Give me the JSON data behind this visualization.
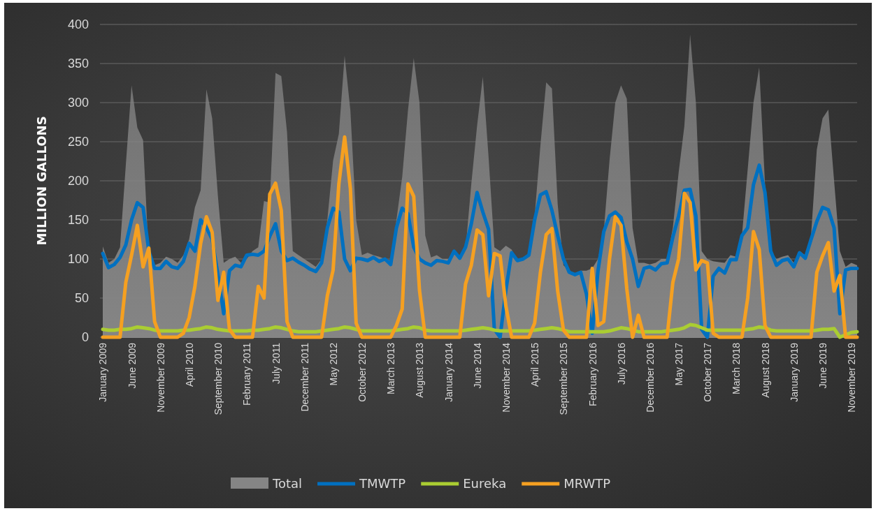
{
  "chart_data": {
    "type": "line",
    "ylabel": "MILLION GALLONS",
    "ylim": [
      0,
      400
    ],
    "yticks": [
      0,
      50,
      100,
      150,
      200,
      250,
      300,
      350,
      400
    ],
    "grid": "y",
    "legend": "bottom",
    "categories": [
      "January 2009",
      null,
      null,
      null,
      null,
      "June 2009",
      null,
      null,
      null,
      null,
      "November 2009",
      null,
      null,
      null,
      null,
      "April 2010",
      null,
      null,
      null,
      null,
      "September 2010",
      null,
      null,
      null,
      null,
      "February 2011",
      null,
      null,
      null,
      null,
      "July 2011",
      null,
      null,
      null,
      null,
      "December 2011",
      null,
      null,
      null,
      null,
      "May 2012",
      null,
      null,
      null,
      null,
      "October 2012",
      null,
      null,
      null,
      null,
      "March 2013",
      null,
      null,
      null,
      null,
      "August 2013",
      null,
      null,
      null,
      null,
      "January 2014",
      null,
      null,
      null,
      null,
      "June 2014",
      null,
      null,
      null,
      null,
      "November 2014",
      null,
      null,
      null,
      null,
      "April 2015",
      null,
      null,
      null,
      null,
      "September 2015",
      null,
      null,
      null,
      null,
      "February 2016",
      null,
      null,
      null,
      null,
      "July 2016",
      null,
      null,
      null,
      null,
      "December 2016",
      null,
      null,
      null,
      null,
      "May 2017",
      null,
      null,
      null,
      null,
      "October 2017",
      null,
      null,
      null,
      null,
      "March 2018",
      null,
      null,
      null,
      null,
      "August 2018",
      null,
      null,
      null,
      null,
      "January 2019",
      null,
      null,
      null,
      null,
      "June 2019",
      null,
      null,
      null,
      null,
      "November 2019",
      null
    ],
    "series": [
      {
        "name": "Total",
        "type": "area",
        "color": "#858585",
        "values": [
          116,
          95,
          100,
          115,
          220,
          322,
          268,
          252,
          100,
          92,
          95,
          103,
          100,
          95,
          105,
          125,
          166,
          188,
          317,
          280,
          180,
          95,
          100,
          103,
          95,
          100,
          110,
          115,
          174,
          172,
          338,
          334,
          262,
          110,
          105,
          100,
          95,
          90,
          100,
          150,
          226,
          260,
          360,
          290,
          150,
          105,
          108,
          105,
          103,
          100,
          98,
          150,
          205,
          290,
          357,
          300,
          130,
          102,
          105,
          100,
          100,
          110,
          103,
          112,
          196,
          270,
          333,
          230,
          115,
          110,
          117,
          112,
          97,
          100,
          107,
          155,
          245,
          326,
          318,
          170,
          92,
          85,
          82,
          85,
          85,
          88,
          100,
          135,
          226,
          300,
          322,
          305,
          140,
          95,
          95,
          93,
          95,
          100,
          100,
          140,
          210,
          270,
          387,
          300,
          110,
          100,
          97,
          96,
          95,
          105,
          103,
          130,
          215,
          300,
          345,
          196,
          110,
          100,
          103,
          105,
          95,
          110,
          105,
          130,
          240,
          280,
          291,
          200,
          110,
          90,
          95,
          92
        ]
      },
      {
        "name": "TMWTP",
        "color": "#0070c0",
        "values": [
          107,
          89,
          93,
          102,
          118,
          150,
          172,
          166,
          110,
          88,
          88,
          97,
          90,
          88,
          97,
          120,
          110,
          150,
          140,
          125,
          80,
          30,
          85,
          92,
          90,
          105,
          106,
          105,
          110,
          129,
          145,
          110,
          98,
          101,
          96,
          92,
          87,
          84,
          95,
          140,
          165,
          160,
          100,
          85,
          101,
          100,
          98,
          102,
          97,
          100,
          93,
          140,
          165,
          158,
          115,
          100,
          95,
          92,
          98,
          97,
          95,
          110,
          101,
          115,
          145,
          185,
          160,
          138,
          10,
          0,
          60,
          108,
          98,
          100,
          105,
          150,
          182,
          186,
          162,
          130,
          100,
          83,
          80,
          83,
          55,
          5,
          85,
          135,
          155,
          160,
          153,
          122,
          100,
          65,
          88,
          90,
          86,
          94,
          95,
          128,
          155,
          188,
          189,
          155,
          10,
          0,
          78,
          88,
          82,
          99,
          99,
          130,
          140,
          195,
          220,
          185,
          110,
          92,
          98,
          100,
          90,
          108,
          101,
          125,
          148,
          166,
          163,
          140,
          30,
          86,
          88,
          88
        ]
      },
      {
        "name": "Eureka",
        "color": "#aacd32",
        "values": [
          10,
          9,
          9,
          10,
          10,
          11,
          13,
          12,
          11,
          9,
          8,
          8,
          8,
          8,
          9,
          9,
          10,
          11,
          13,
          12,
          10,
          9,
          8,
          8,
          8,
          8,
          9,
          9,
          10,
          11,
          13,
          12,
          10,
          8,
          7,
          7,
          7,
          7,
          8,
          9,
          10,
          11,
          13,
          12,
          10,
          8,
          8,
          8,
          8,
          8,
          8,
          9,
          10,
          11,
          13,
          12,
          9,
          8,
          8,
          8,
          8,
          8,
          8,
          9,
          10,
          11,
          12,
          11,
          9,
          8,
          8,
          8,
          8,
          8,
          8,
          9,
          10,
          11,
          12,
          11,
          9,
          7,
          7,
          7,
          7,
          7,
          7,
          7,
          8,
          10,
          12,
          11,
          9,
          7,
          7,
          7,
          7,
          7,
          8,
          9,
          10,
          12,
          16,
          15,
          12,
          9,
          9,
          9,
          9,
          9,
          9,
          9,
          10,
          11,
          13,
          12,
          9,
          8,
          8,
          8,
          8,
          8,
          8,
          8,
          9,
          10,
          10,
          11,
          0,
          3,
          6,
          7
        ]
      },
      {
        "name": "MRWTP",
        "color": "#f5a021",
        "values": [
          0,
          0,
          0,
          0,
          70,
          105,
          143,
          90,
          114,
          20,
          0,
          0,
          0,
          0,
          5,
          25,
          65,
          120,
          154,
          134,
          47,
          83,
          10,
          0,
          0,
          0,
          0,
          65,
          50,
          183,
          197,
          162,
          20,
          0,
          0,
          0,
          0,
          0,
          0,
          53,
          86,
          196,
          256,
          190,
          18,
          0,
          0,
          0,
          0,
          0,
          0,
          15,
          36,
          196,
          180,
          60,
          0,
          0,
          0,
          0,
          0,
          0,
          0,
          68,
          92,
          137,
          131,
          53,
          107,
          104,
          40,
          0,
          0,
          0,
          0,
          18,
          83,
          131,
          139,
          59,
          9,
          0,
          0,
          0,
          0,
          88,
          15,
          20,
          100,
          154,
          143,
          62,
          0,
          28,
          0,
          0,
          0,
          0,
          0,
          70,
          100,
          184,
          172,
          86,
          98,
          95,
          5,
          0,
          0,
          0,
          0,
          0,
          50,
          135,
          112,
          15,
          0,
          0,
          0,
          0,
          0,
          0,
          0,
          0,
          83,
          104,
          121,
          59,
          79,
          0,
          0,
          0
        ]
      }
    ]
  }
}
